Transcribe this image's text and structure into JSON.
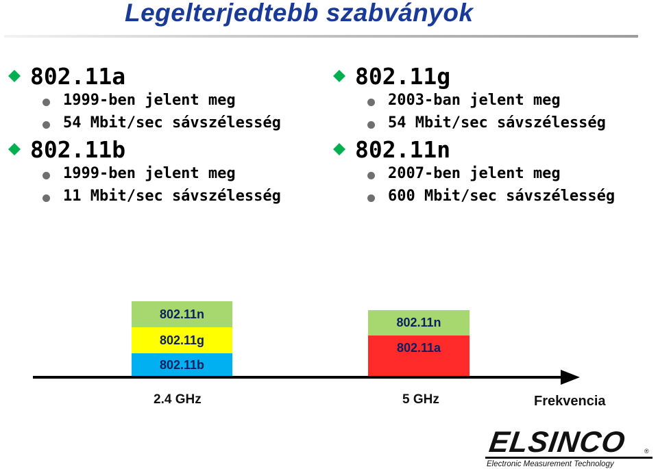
{
  "title": "Legelterjedtebb szabványok",
  "columns": [
    {
      "standards": [
        {
          "name": "802.11a",
          "bullets": [
            "1999-ben jelent meg",
            "54 Mbit/sec sávszélesség"
          ]
        },
        {
          "name": "802.11b",
          "bullets": [
            "1999-ben jelent meg",
            "11 Mbit/sec sávszélesség"
          ]
        }
      ]
    },
    {
      "standards": [
        {
          "name": "802.11g",
          "bullets": [
            "2003-ban jelent meg",
            "54 Mbit/sec sávszélesség"
          ]
        },
        {
          "name": "802.11n",
          "bullets": [
            "2007-ben jelent meg",
            "600 Mbit/sec sávszélesség"
          ]
        }
      ]
    }
  ],
  "diagram": {
    "band_24": {
      "label": "2.4 GHz",
      "boxes": [
        {
          "label": "802.11n",
          "color": "#a7d86f"
        },
        {
          "label": "802.11g",
          "color": "#ffff00"
        },
        {
          "label": "802.11b",
          "color": "#00b0f0"
        }
      ]
    },
    "band_5": {
      "label": "5 GHz",
      "boxes": [
        {
          "label": "802.11n",
          "color": "#a7d86f"
        },
        {
          "label": "802.11a",
          "color": "#ff2a2a"
        }
      ]
    },
    "axis_label": "Frekvencia"
  },
  "logo": {
    "name": "ELSINCO",
    "registered": "®",
    "tagline": "Electronic Measurement Technology"
  },
  "colors": {
    "title": "#1a3a9a",
    "diamond": "#00b050",
    "bullet_dot": "#6f6f6f"
  }
}
